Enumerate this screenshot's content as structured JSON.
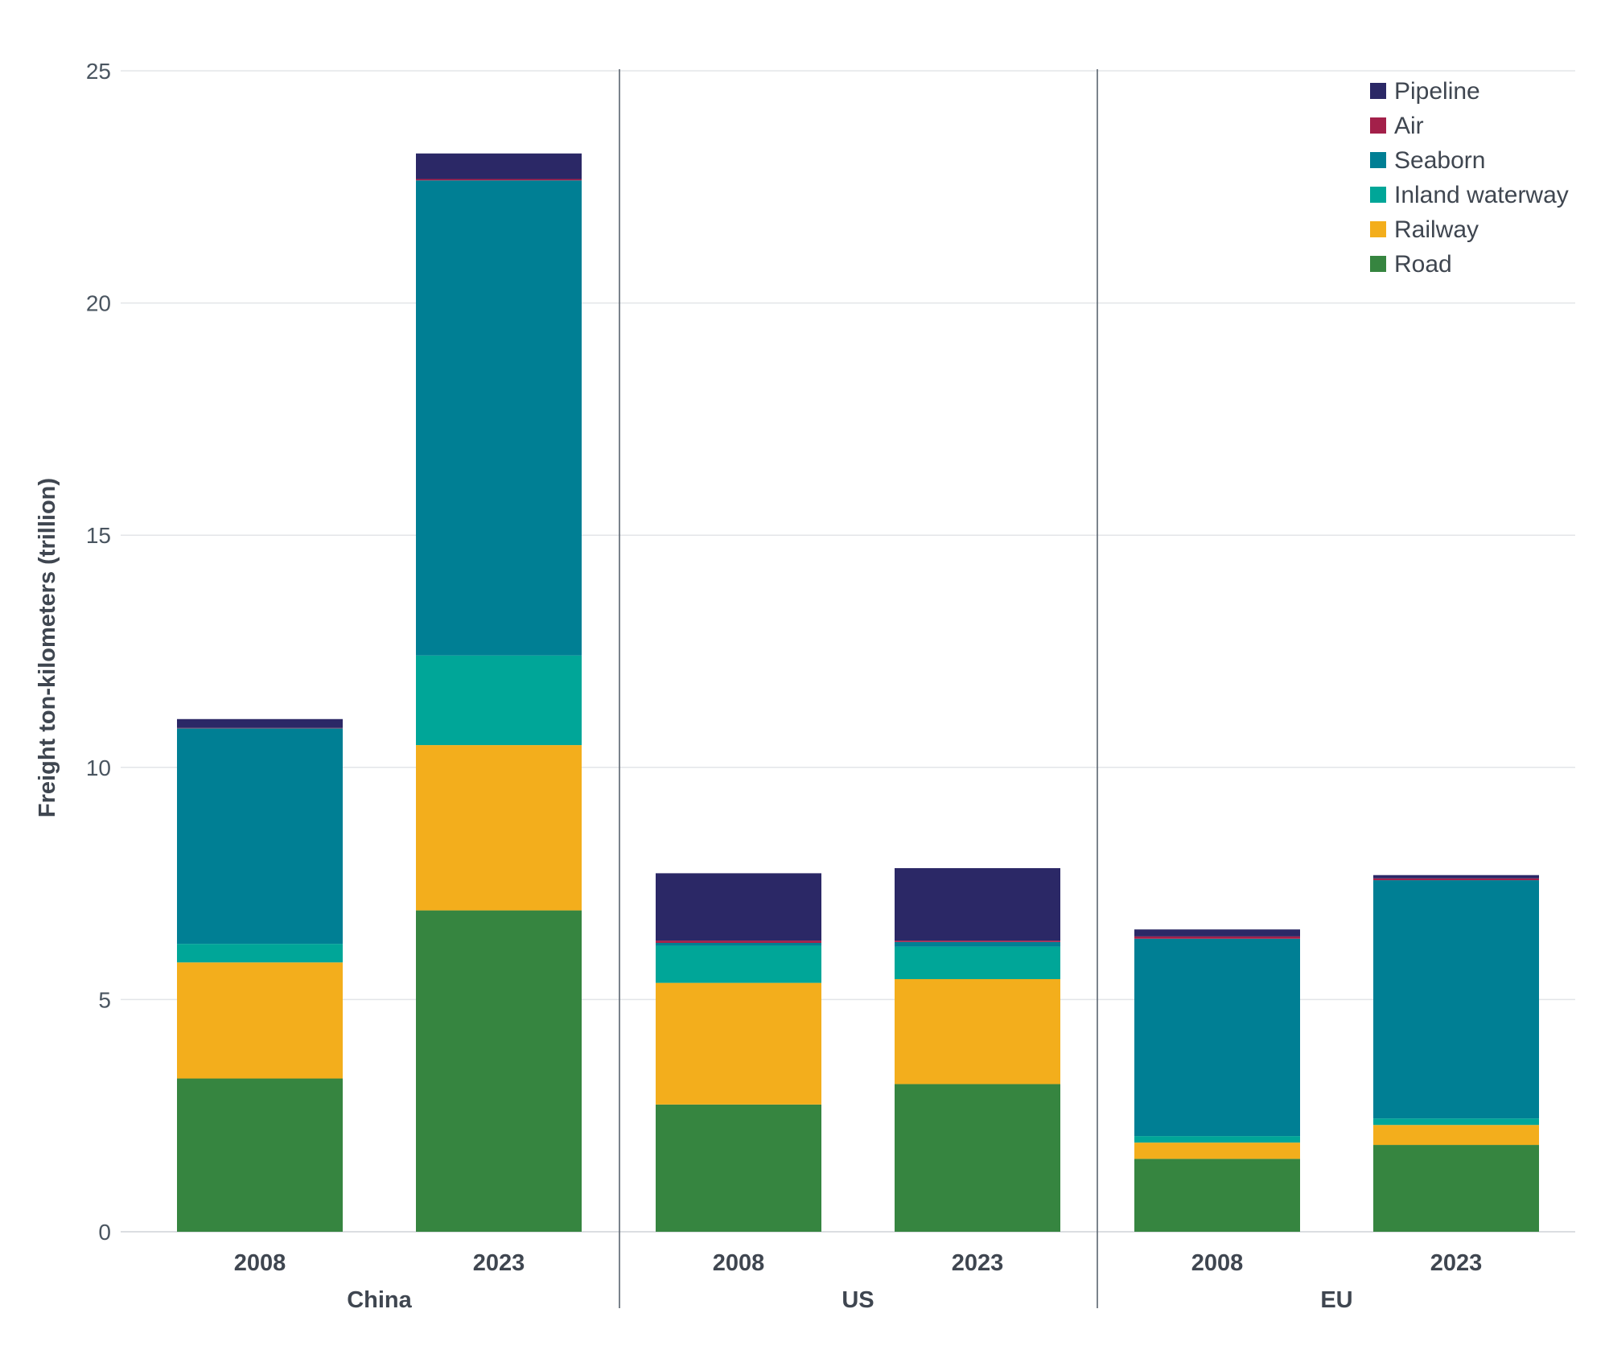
{
  "chart_data": {
    "type": "bar",
    "stacked": true,
    "ylabel": "Freight ton-kilometers (trillion)",
    "ylim": [
      0,
      25
    ],
    "yticks": [
      0,
      5,
      10,
      15,
      20,
      25
    ],
    "grid": true,
    "legend_position": "top-right",
    "groups": [
      {
        "name": "China",
        "categories": [
          "2008",
          "2023"
        ]
      },
      {
        "name": "US",
        "categories": [
          "2008",
          "2023"
        ]
      },
      {
        "name": "EU",
        "categories": [
          "2008",
          "2023"
        ]
      }
    ],
    "series": [
      {
        "name": "Road",
        "color": "#368540",
        "values": [
          3.3,
          6.92,
          2.74,
          3.18,
          1.57,
          1.87
        ]
      },
      {
        "name": "Railway",
        "color": "#f3ae1c",
        "values": [
          2.5,
          3.56,
          2.62,
          2.26,
          0.35,
          0.43
        ]
      },
      {
        "name": "Inland waterway",
        "color": "#00a698",
        "values": [
          0.4,
          1.93,
          0.8,
          0.7,
          0.14,
          0.14
        ]
      },
      {
        "name": "Seaborn",
        "color": "#007f94",
        "values": [
          4.64,
          10.23,
          0.06,
          0.1,
          4.25,
          5.13
        ]
      },
      {
        "name": "Air",
        "color": "#a3204a",
        "values": [
          0.01,
          0.03,
          0.05,
          0.03,
          0.05,
          0.04
        ]
      },
      {
        "name": "Pipeline",
        "color": "#2b2866",
        "values": [
          0.19,
          0.55,
          1.45,
          1.56,
          0.15,
          0.07
        ]
      }
    ],
    "legend_order": [
      "Pipeline",
      "Air",
      "Seaborn",
      "Inland waterway",
      "Railway",
      "Road"
    ]
  }
}
